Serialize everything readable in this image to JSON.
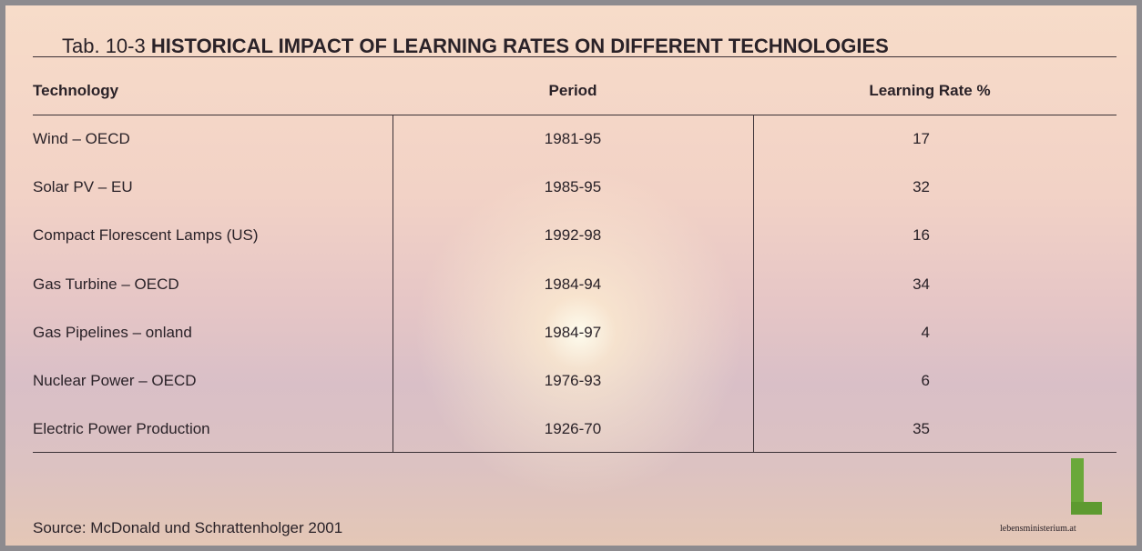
{
  "header": {
    "label": "Tab. 10-3",
    "title": "HISTORICAL IMPACT OF LEARNING RATES ON DIFFERENT TECHNOLOGIES"
  },
  "table": {
    "columns": [
      "Technology",
      "Period",
      "Learning Rate %"
    ],
    "rows": [
      [
        "Wind – OECD",
        "1981-95",
        17
      ],
      [
        "Solar PV – EU",
        "1985-95",
        32
      ],
      [
        "Compact Florescent Lamps (US)",
        "1992-98",
        16
      ],
      [
        "Gas Turbine – OECD",
        "1984-94",
        34
      ],
      [
        "Gas Pipelines – onland",
        "1984-97",
        4
      ],
      [
        "Nuclear Power – OECD",
        "1976-93",
        6
      ],
      [
        "Electric Power Production",
        "1926-70",
        35
      ]
    ]
  },
  "footer": {
    "source": "Source:  McDonald und Schrattenholger 2001",
    "logo": "lebensministerium.at"
  }
}
